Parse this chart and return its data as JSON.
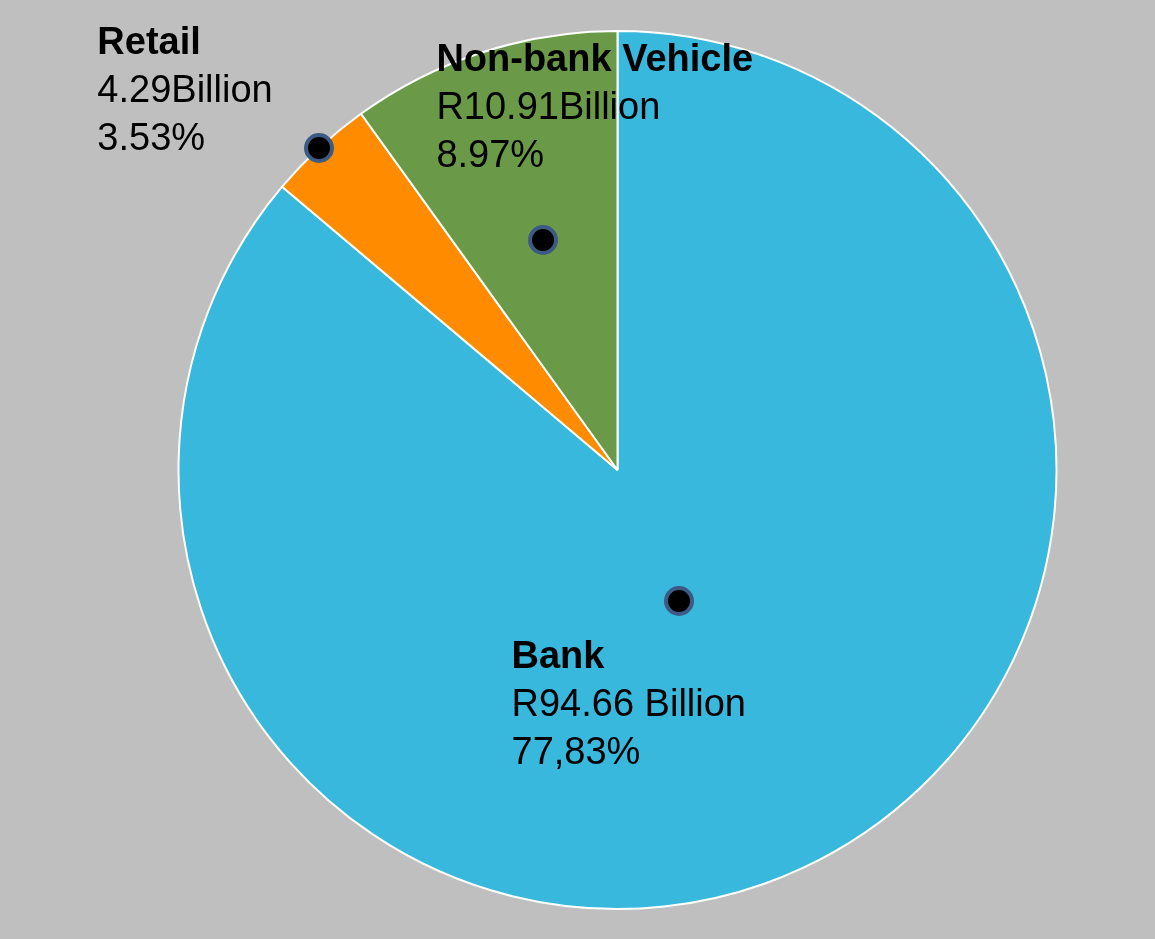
{
  "chart_data": {
    "type": "pie",
    "categories": [
      "Bank",
      "Retail",
      "Non-bank Vehicle"
    ],
    "values": [
      94.66,
      4.29,
      10.91
    ],
    "colors": [
      "#38b8dc",
      "#ff8c00",
      "#6a9a48"
    ],
    "value_labels": [
      "R94.66 Billion\n77,83%",
      "4.29Billion\n3.53%",
      "R10.91Billion\n8.97%"
    ],
    "legend": false
  }
}
